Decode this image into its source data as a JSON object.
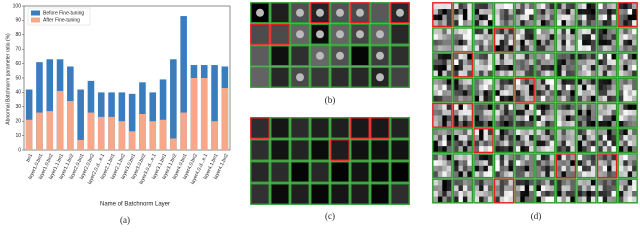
{
  "chart_data": {
    "type": "bar",
    "y_label": "Abnormal Batchnorm parameter ratio (%)",
    "x_label": "Name of Batchnorm Layer",
    "caption": "(a)",
    "categories": [
      "bn1",
      "layer1.0.bn1",
      "layer1.0.bn2",
      "layer1.1.bn1",
      "layer1.1.bn2",
      "layer2.0.bn1",
      "layer2.0.bn2",
      "layer2.0.d...e.1",
      "layer2.1.bn1",
      "layer2.1.bn2",
      "layer3.0.bn1",
      "layer3.0.bn2",
      "layer3.0.d...e.1",
      "layer3.1.bn1",
      "layer3.1.bn2",
      "layer4.0.bn1",
      "layer4.0.bn2",
      "layer4.0.d...e.1",
      "layer4.1.bn1",
      "layer4.1.bn2"
    ],
    "series": [
      {
        "name": "Before Fine-tuning",
        "color": "#3a7dbf",
        "values": [
          42,
          61,
          63,
          63,
          58,
          42,
          48,
          40,
          40,
          40,
          39,
          47,
          40,
          49,
          63,
          93,
          59,
          59,
          59,
          58
        ]
      },
      {
        "name": "After Fine-tuning",
        "color": "#f5a98a",
        "values": [
          21,
          26,
          27,
          41,
          34,
          7,
          26,
          23,
          23,
          20,
          13,
          25,
          20,
          21,
          8,
          26,
          50,
          50,
          20,
          43
        ]
      }
    ],
    "ylim": [
      0,
      100
    ],
    "yticks": [
      0,
      10,
      20,
      30,
      40,
      50,
      60,
      70,
      80,
      90,
      100
    ],
    "legend": "upper left"
  },
  "panels": [
    {
      "caption": "(b)"
    },
    {
      "caption": "(c)"
    },
    {
      "caption": "(d)"
    }
  ]
}
